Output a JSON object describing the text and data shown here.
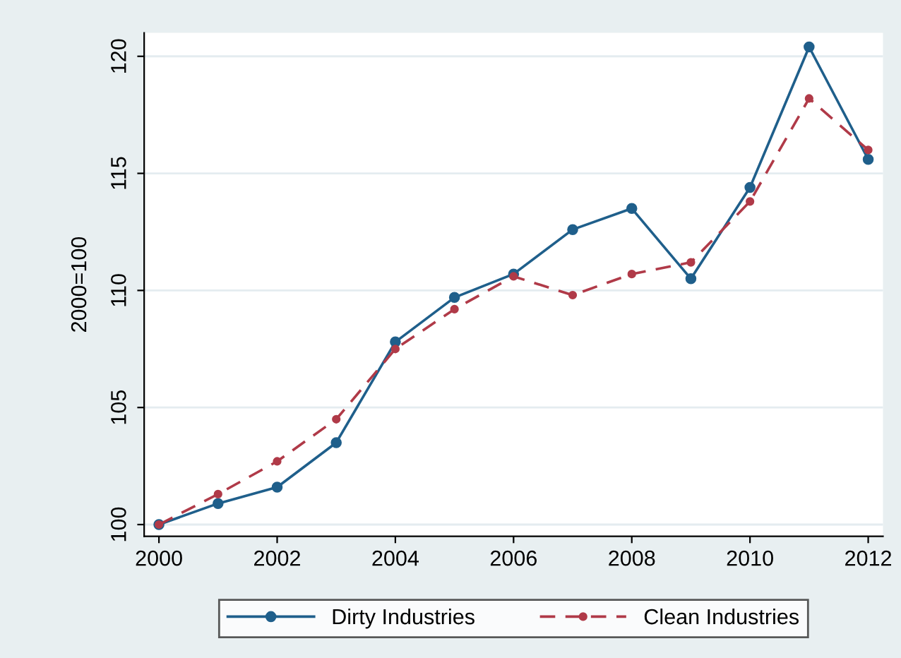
{
  "chart_data": {
    "type": "line",
    "ylabel": "2000=100",
    "x": [
      2000,
      2001,
      2002,
      2003,
      2004,
      2005,
      2006,
      2007,
      2008,
      2009,
      2010,
      2011,
      2012
    ],
    "series": [
      {
        "name": "Dirty Industries",
        "color": "#1f5f8b",
        "line_style": "solid",
        "marker": "circle",
        "values": [
          100,
          100.9,
          101.6,
          103.5,
          107.8,
          109.7,
          110.7,
          112.6,
          113.5,
          110.5,
          114.4,
          120.4,
          115.6
        ]
      },
      {
        "name": "Clean Industries",
        "color": "#b03a48",
        "line_style": "dashed",
        "marker": "circle",
        "values": [
          100,
          101.3,
          102.7,
          104.5,
          107.5,
          109.2,
          110.6,
          109.8,
          110.7,
          111.2,
          113.8,
          118.2,
          116.0
        ]
      }
    ],
    "xlim": [
      1999.75,
      2012.25
    ],
    "xticks": [
      2000,
      2002,
      2004,
      2006,
      2008,
      2010,
      2012
    ],
    "ylim": [
      99.5,
      121
    ],
    "yticks": [
      100,
      105,
      110,
      115,
      120
    ],
    "grid": "y",
    "legend": "bottom"
  }
}
